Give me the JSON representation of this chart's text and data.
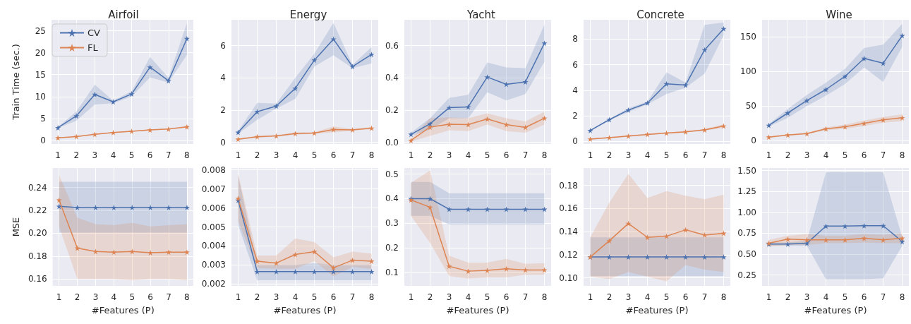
{
  "chart_data": [
    {
      "type": "line",
      "title": "Airfoil",
      "ylabel": "Train Time (sec.)",
      "x": [
        1,
        2,
        3,
        4,
        5,
        6,
        7,
        8
      ],
      "xlim": [
        0.65,
        8.35
      ],
      "xticks": [
        1,
        2,
        3,
        4,
        5,
        6,
        7,
        8
      ],
      "ylim": [
        -0.8,
        27.5
      ],
      "yticks": [
        0,
        5,
        10,
        15,
        20,
        25
      ],
      "grid": true,
      "marker": "star",
      "legend": "top left",
      "series": [
        {
          "name": "CV",
          "color": "#4c72b0",
          "values": [
            2.9,
            5.6,
            10.5,
            8.8,
            10.6,
            16.7,
            13.6,
            23.2
          ],
          "lower": [
            2.8,
            4.5,
            8.2,
            8.5,
            10.0,
            14.4,
            13.2,
            19.5
          ],
          "upper": [
            3.1,
            6.6,
            12.7,
            9.1,
            11.2,
            19.0,
            14.3,
            26.7
          ]
        },
        {
          "name": "FL",
          "color": "#dd8452",
          "values": [
            0.6,
            0.9,
            1.4,
            1.8,
            2.1,
            2.4,
            2.6,
            3.1
          ],
          "lower": [
            0.5,
            0.8,
            1.3,
            1.7,
            2.0,
            2.3,
            2.5,
            2.9
          ],
          "upper": [
            0.7,
            1.0,
            1.5,
            1.9,
            2.2,
            2.5,
            2.7,
            3.3
          ]
        }
      ]
    },
    {
      "type": "line",
      "title": "Energy",
      "x": [
        1,
        2,
        3,
        4,
        5,
        6,
        7,
        8
      ],
      "xlim": [
        0.65,
        8.35
      ],
      "xticks": [
        1,
        2,
        3,
        4,
        5,
        6,
        7,
        8
      ],
      "ylim": [
        -0.1,
        7.6
      ],
      "yticks": [
        0,
        2,
        4,
        6
      ],
      "grid": true,
      "marker": "star",
      "series": [
        {
          "color": "#4c72b0",
          "values": [
            0.62,
            1.9,
            2.25,
            3.35,
            5.1,
            6.4,
            4.7,
            5.45
          ],
          "lower": [
            0.55,
            1.4,
            2.1,
            2.7,
            4.7,
            5.4,
            4.6,
            4.9
          ],
          "upper": [
            0.7,
            2.45,
            2.4,
            4.0,
            5.5,
            7.4,
            4.8,
            5.9
          ]
        },
        {
          "color": "#dd8452",
          "values": [
            0.2,
            0.35,
            0.4,
            0.55,
            0.58,
            0.8,
            0.78,
            0.88
          ],
          "lower": [
            0.15,
            0.3,
            0.35,
            0.48,
            0.53,
            0.62,
            0.72,
            0.82
          ],
          "upper": [
            0.25,
            0.4,
            0.45,
            0.62,
            0.63,
            0.98,
            0.84,
            0.94
          ]
        }
      ]
    },
    {
      "type": "line",
      "title": "Yacht",
      "x": [
        1,
        2,
        3,
        4,
        5,
        6,
        7,
        8
      ],
      "xlim": [
        0.65,
        8.35
      ],
      "xticks": [
        1,
        2,
        3,
        4,
        5,
        6,
        7,
        8
      ],
      "ylim": [
        -0.01,
        0.76
      ],
      "yticks": [
        {
          "value": 0,
          "label": "0.0"
        },
        0.2,
        0.4,
        0.6
      ],
      "grid": true,
      "marker": "star",
      "series": [
        {
          "color": "#4c72b0",
          "values": [
            0.05,
            0.115,
            0.215,
            0.22,
            0.405,
            0.36,
            0.375,
            0.615
          ],
          "lower": [
            0.04,
            0.08,
            0.15,
            0.15,
            0.31,
            0.26,
            0.3,
            0.5
          ],
          "upper": [
            0.06,
            0.15,
            0.275,
            0.295,
            0.495,
            0.465,
            0.46,
            0.73
          ]
        },
        {
          "color": "#dd8452",
          "values": [
            0.012,
            0.095,
            0.112,
            0.11,
            0.145,
            0.11,
            0.093,
            0.15
          ],
          "lower": [
            0.005,
            0.04,
            0.075,
            0.07,
            0.11,
            0.07,
            0.06,
            0.11
          ],
          "upper": [
            0.02,
            0.15,
            0.155,
            0.15,
            0.18,
            0.15,
            0.13,
            0.19
          ]
        }
      ]
    },
    {
      "type": "line",
      "title": "Concrete",
      "x": [
        1,
        2,
        3,
        4,
        5,
        6,
        7,
        8
      ],
      "xlim": [
        0.65,
        8.35
      ],
      "xticks": [
        1,
        2,
        3,
        4,
        5,
        6,
        7,
        8
      ],
      "ylim": [
        -0.2,
        9.5
      ],
      "yticks": [
        0,
        2,
        4,
        6,
        8
      ],
      "grid": true,
      "marker": "star",
      "series": [
        {
          "color": "#4c72b0",
          "values": [
            0.85,
            1.7,
            2.45,
            3.0,
            4.5,
            4.4,
            7.15,
            8.8
          ],
          "lower": [
            0.8,
            1.65,
            2.3,
            2.9,
            3.7,
            4.2,
            5.3,
            8.3
          ],
          "upper": [
            0.9,
            1.75,
            2.6,
            3.1,
            5.4,
            4.6,
            9.1,
            9.3
          ]
        },
        {
          "color": "#dd8452",
          "values": [
            0.18,
            0.3,
            0.42,
            0.55,
            0.65,
            0.75,
            0.9,
            1.2
          ],
          "lower": [
            0.13,
            0.25,
            0.37,
            0.5,
            0.6,
            0.7,
            0.83,
            1.08
          ],
          "upper": [
            0.23,
            0.35,
            0.47,
            0.6,
            0.7,
            0.8,
            0.97,
            1.35
          ]
        }
      ]
    },
    {
      "type": "line",
      "title": "Wine",
      "x": [
        1,
        2,
        3,
        4,
        5,
        6,
        7,
        8
      ],
      "xlim": [
        0.65,
        8.35
      ],
      "xticks": [
        1,
        2,
        3,
        4,
        5,
        6,
        7,
        8
      ],
      "ylim": [
        -5,
        175
      ],
      "yticks": [
        0,
        50,
        100,
        150
      ],
      "grid": true,
      "marker": "star",
      "series": [
        {
          "color": "#4c72b0",
          "values": [
            22,
            40,
            58,
            74,
            93,
            119,
            112,
            152
          ],
          "lower": [
            20,
            33,
            50,
            65,
            82,
            106,
            85,
            136
          ],
          "upper": [
            24,
            46,
            66,
            84,
            104,
            134,
            139,
            169
          ]
        },
        {
          "color": "#dd8452",
          "values": [
            5,
            8,
            10,
            17,
            20,
            25,
            30,
            33
          ],
          "lower": [
            4,
            7,
            9,
            15,
            17,
            21,
            26,
            28
          ],
          "upper": [
            6,
            9,
            11,
            19,
            23,
            29,
            34,
            38
          ]
        }
      ]
    },
    {
      "type": "line",
      "xlabel": "#Features (P)",
      "ylabel": "MSE",
      "x": [
        1,
        2,
        3,
        4,
        5,
        6,
        7,
        8
      ],
      "xlim": [
        0.65,
        8.35
      ],
      "xticks": [
        1,
        2,
        3,
        4,
        5,
        6,
        7,
        8
      ],
      "ylim": [
        0.154,
        0.257
      ],
      "yticks": [
        0.16,
        0.18,
        {
          "value": 0.2,
          "label": "0.20"
        },
        0.22,
        0.24
      ],
      "grid": true,
      "marker": "star",
      "series": [
        {
          "color": "#4c72b0",
          "values": [
            0.2235,
            0.2225,
            0.2225,
            0.2225,
            0.2225,
            0.2225,
            0.2225,
            0.2225
          ],
          "lower": [
            0.2005,
            0.2005,
            0.2005,
            0.2005,
            0.2005,
            0.2005,
            0.2005,
            0.2005
          ],
          "upper": [
            0.245,
            0.245,
            0.245,
            0.245,
            0.245,
            0.245,
            0.245,
            0.245
          ]
        },
        {
          "color": "#dd8452",
          "values": [
            0.229,
            0.187,
            0.184,
            0.1835,
            0.184,
            0.183,
            0.1835,
            0.1835
          ],
          "lower": [
            0.206,
            0.16,
            0.16,
            0.16,
            0.159,
            0.16,
            0.16,
            0.159
          ],
          "upper": [
            0.251,
            0.2135,
            0.208,
            0.207,
            0.209,
            0.206,
            0.207,
            0.208
          ]
        }
      ]
    },
    {
      "type": "line",
      "xlabel": "#Features (P)",
      "x": [
        1,
        2,
        3,
        4,
        5,
        6,
        7,
        8
      ],
      "xlim": [
        0.65,
        8.35
      ],
      "xticks": [
        1,
        2,
        3,
        4,
        5,
        6,
        7,
        8
      ],
      "ylim": [
        0.0019,
        0.0081
      ],
      "yticks": [
        0.002,
        0.003,
        0.004,
        0.005,
        0.006,
        0.007,
        0.008
      ],
      "grid": true,
      "marker": "star",
      "series": [
        {
          "color": "#4c72b0",
          "values": [
            0.0064,
            0.00265,
            0.00265,
            0.00265,
            0.00265,
            0.00265,
            0.00265,
            0.00265
          ],
          "lower": [
            0.0051,
            0.0022,
            0.0022,
            0.0022,
            0.0022,
            0.0022,
            0.0022,
            0.0022
          ],
          "upper": [
            0.0077,
            0.003,
            0.003,
            0.003,
            0.0031,
            0.003,
            0.003,
            0.003
          ]
        },
        {
          "color": "#dd8452",
          "values": [
            0.0065,
            0.0032,
            0.0031,
            0.00355,
            0.0037,
            0.00285,
            0.00325,
            0.0032
          ],
          "lower": [
            0.0053,
            0.00285,
            0.0028,
            0.0028,
            0.0032,
            0.0024,
            0.0029,
            0.0028
          ],
          "upper": [
            0.0078,
            0.0035,
            0.0035,
            0.0044,
            0.0042,
            0.0034,
            0.0037,
            0.0036
          ]
        }
      ]
    },
    {
      "type": "line",
      "xlabel": "#Features (P)",
      "x": [
        1,
        2,
        3,
        4,
        5,
        6,
        7,
        8
      ],
      "xlim": [
        0.65,
        8.35
      ],
      "xticks": [
        1,
        2,
        3,
        4,
        5,
        6,
        7,
        8
      ],
      "ylim": [
        0.045,
        0.525
      ],
      "yticks": [
        0.1,
        0.2,
        0.3,
        0.4,
        0.5
      ],
      "grid": true,
      "marker": "star",
      "series": [
        {
          "color": "#4c72b0",
          "values": [
            0.4,
            0.4,
            0.357,
            0.357,
            0.357,
            0.357,
            0.357,
            0.357
          ],
          "lower": [
            0.33,
            0.33,
            0.295,
            0.295,
            0.295,
            0.295,
            0.295,
            0.295
          ],
          "upper": [
            0.468,
            0.468,
            0.422,
            0.422,
            0.422,
            0.422,
            0.422,
            0.422
          ]
        },
        {
          "color": "#dd8452",
          "values": [
            0.395,
            0.365,
            0.125,
            0.105,
            0.108,
            0.115,
            0.11,
            0.11
          ],
          "lower": [
            0.33,
            0.22,
            0.085,
            0.075,
            0.08,
            0.08,
            0.09,
            0.09
          ],
          "upper": [
            0.465,
            0.515,
            0.168,
            0.14,
            0.14,
            0.155,
            0.135,
            0.138
          ]
        }
      ]
    },
    {
      "type": "line",
      "xlabel": "#Features (P)",
      "x": [
        1,
        2,
        3,
        4,
        5,
        6,
        7,
        8
      ],
      "xlim": [
        0.65,
        8.35
      ],
      "xticks": [
        1,
        2,
        3,
        4,
        5,
        6,
        7,
        8
      ],
      "ylim": [
        0.093,
        0.195
      ],
      "yticks": [
        {
          "value": 0.1,
          "label": "0.10"
        },
        0.12,
        0.14,
        0.16,
        0.18
      ],
      "grid": true,
      "marker": "star",
      "series": [
        {
          "color": "#4c72b0",
          "values": [
            0.118,
            0.118,
            0.118,
            0.118,
            0.118,
            0.118,
            0.118,
            0.118
          ],
          "lower": [
            0.1015,
            0.1015,
            0.1015,
            0.1015,
            0.1015,
            0.1015,
            0.1015,
            0.1015
          ],
          "upper": [
            0.135,
            0.135,
            0.135,
            0.135,
            0.135,
            0.135,
            0.135,
            0.135
          ]
        },
        {
          "color": "#dd8452",
          "values": [
            0.118,
            0.132,
            0.147,
            0.135,
            0.136,
            0.1415,
            0.137,
            0.1385
          ],
          "lower": [
            0.101,
            0.099,
            0.105,
            0.101,
            0.097,
            0.111,
            0.107,
            0.105
          ],
          "upper": [
            0.135,
            0.165,
            0.19,
            0.169,
            0.175,
            0.171,
            0.168,
            0.172
          ]
        }
      ]
    },
    {
      "type": "line",
      "xlabel": "#Features (P)",
      "x": [
        1,
        2,
        3,
        4,
        5,
        6,
        7,
        8
      ],
      "xlim": [
        0.65,
        8.35
      ],
      "xticks": [
        1,
        2,
        3,
        4,
        5,
        6,
        7,
        8
      ],
      "ylim": [
        0.12,
        1.53
      ],
      "yticks": [
        0.25,
        {
          "value": 0.5,
          "label": "0.50"
        },
        0.75,
        {
          "value": 1,
          "label": "1.00"
        },
        1.25,
        {
          "value": 1.5,
          "label": "1.50"
        }
      ],
      "grid": true,
      "marker": "star",
      "series": [
        {
          "color": "#4c72b0",
          "values": [
            0.62,
            0.62,
            0.63,
            0.835,
            0.835,
            0.84,
            0.84,
            0.65
          ],
          "lower": [
            0.6,
            0.6,
            0.6,
            0.2,
            0.2,
            0.2,
            0.21,
            0.6
          ],
          "upper": [
            0.64,
            0.64,
            0.66,
            1.48,
            1.48,
            1.48,
            1.48,
            0.7
          ]
        },
        {
          "color": "#dd8452",
          "values": [
            0.63,
            0.68,
            0.67,
            0.67,
            0.67,
            0.69,
            0.67,
            0.69
          ],
          "lower": [
            0.59,
            0.61,
            0.61,
            0.63,
            0.63,
            0.64,
            0.63,
            0.63
          ],
          "upper": [
            0.67,
            0.72,
            0.74,
            0.72,
            0.72,
            0.74,
            0.73,
            0.75
          ]
        }
      ]
    }
  ]
}
